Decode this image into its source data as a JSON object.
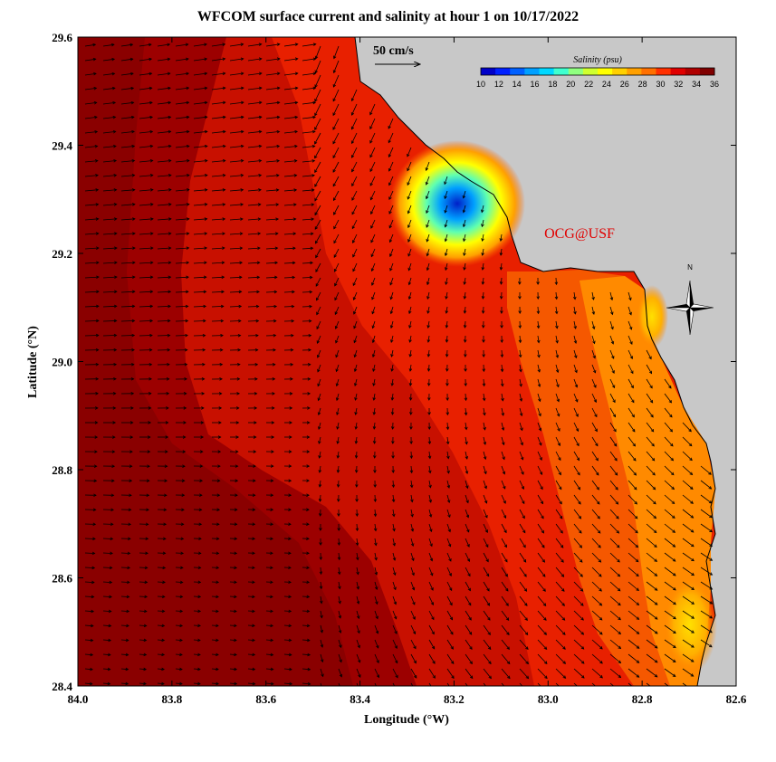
{
  "title": "WFCOM surface current and salinity at hour 1 on 10/17/2022",
  "credit": "OCG@USF",
  "scale_arrow_label": "50 cm/s",
  "compass_label": "N",
  "colorbar": {
    "title": "Salinity (psu)",
    "ticks": [
      "10",
      "12",
      "14",
      "16",
      "18",
      "20",
      "22",
      "24",
      "26",
      "28",
      "30",
      "32",
      "34",
      "36"
    ],
    "colors": [
      "#0000c8",
      "#0020ff",
      "#0060ff",
      "#00a0ff",
      "#00d8ff",
      "#40ffd0",
      "#90ff80",
      "#d0ff30",
      "#ffff00",
      "#ffd000",
      "#ffa000",
      "#ff7000",
      "#ff3000",
      "#e00000",
      "#b00000",
      "#800000"
    ]
  },
  "axes": {
    "xlabel": "Longitude (°W)",
    "ylabel": "Latitude (°N)",
    "x_ticks": [
      "84.0",
      "83.8",
      "83.6",
      "83.4",
      "83.2",
      "83.0",
      "82.8",
      "82.6"
    ],
    "y_ticks": [
      "29.6",
      "29.4",
      "29.2",
      "29.0",
      "28.8",
      "28.6",
      "28.4"
    ],
    "x_range": [
      84.0,
      82.6
    ],
    "y_range": [
      28.4,
      29.6
    ]
  },
  "colors": {
    "land": "#c8c8c8",
    "deep_water": "#9c0000",
    "mid_water": "#c81000",
    "shelf_water": "#e82000",
    "near_shore": "#f55800",
    "coastal": "#ff8a00",
    "plume_yellow": "#ffe000",
    "plume_blue": "#0030e0",
    "credit": "#e00000"
  }
}
